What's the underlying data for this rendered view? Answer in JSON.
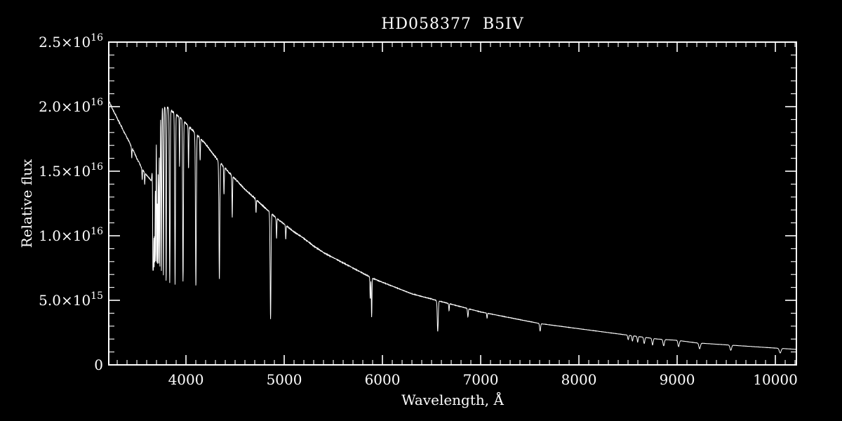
{
  "chart_data": {
    "type": "line",
    "title": "HD058377  B5IV",
    "xlabel": "Wavelength, Å",
    "ylabel": "Relative flux",
    "xlim": [
      3214,
      10214
    ],
    "ylim": [
      0,
      2.5e+16
    ],
    "background": "#000000",
    "foreground": "#ffffff",
    "grid": false,
    "legend": "none",
    "x_minor_step": 100,
    "y_minor_step": 1000000000000000.0,
    "x_ticks": [
      {
        "value": 4000,
        "label": "4000"
      },
      {
        "value": 5000,
        "label": "5000"
      },
      {
        "value": 6000,
        "label": "6000"
      },
      {
        "value": 7000,
        "label": "7000"
      },
      {
        "value": 8000,
        "label": "8000"
      },
      {
        "value": 9000,
        "label": "9000"
      },
      {
        "value": 10000,
        "label": "10000"
      }
    ],
    "y_ticks": [
      {
        "value": 0,
        "label": "0",
        "exp": ""
      },
      {
        "value": 5000000000000000.0,
        "label": "5.0×10",
        "exp": "15"
      },
      {
        "value": 1e+16,
        "label": "1.0×10",
        "exp": "16"
      },
      {
        "value": 1.5e+16,
        "label": "1.5×10",
        "exp": "16"
      },
      {
        "value": 2e+16,
        "label": "2.0×10",
        "exp": "16"
      },
      {
        "value": 2.5e+16,
        "label": "2.5×10",
        "exp": "16"
      }
    ],
    "series": [
      {
        "name": "spectrum",
        "continuum": [
          [
            3214,
            2.05e+16
          ],
          [
            3260,
            1.97e+16
          ],
          [
            3320,
            1.88e+16
          ],
          [
            3380,
            1.79e+16
          ],
          [
            3440,
            1.7e+16
          ],
          [
            3500,
            1.6e+16
          ],
          [
            3560,
            1.51e+16
          ],
          [
            3620,
            1.45e+16
          ],
          [
            3647,
            1.43e+16
          ],
          [
            3660,
            1.52e+16
          ],
          [
            3680,
            1.68e+16
          ],
          [
            3700,
            1.85e+16
          ],
          [
            3730,
            1.95e+16
          ],
          [
            3760,
            1.99e+16
          ],
          [
            3800,
            2e+16
          ],
          [
            3850,
            1.97e+16
          ],
          [
            3900,
            1.94e+16
          ],
          [
            3950,
            1.91e+16
          ],
          [
            4000,
            1.87e+16
          ],
          [
            4100,
            1.79e+16
          ],
          [
            4200,
            1.71e+16
          ],
          [
            4300,
            1.61e+16
          ],
          [
            4400,
            1.52e+16
          ],
          [
            4500,
            1.44e+16
          ],
          [
            4600,
            1.36e+16
          ],
          [
            4700,
            1.29e+16
          ],
          [
            4800,
            1.22e+16
          ],
          [
            4900,
            1.15e+16
          ],
          [
            5000,
            1.09e+16
          ],
          [
            5100,
            1.03e+16
          ],
          [
            5200,
            9800000000000000.0
          ],
          [
            5300,
            9200000000000000.0
          ],
          [
            5400,
            8700000000000000.0
          ],
          [
            5500,
            8300000000000000.0
          ],
          [
            5600,
            7900000000000000.0
          ],
          [
            5700,
            7500000000000000.0
          ],
          [
            5800,
            7100000000000000.0
          ],
          [
            5900,
            6700000000000000.0
          ],
          [
            6000,
            6400000000000000.0
          ],
          [
            6100,
            6100000000000000.0
          ],
          [
            6200,
            5800000000000000.0
          ],
          [
            6300,
            5500000000000000.0
          ],
          [
            6400,
            5300000000000000.0
          ],
          [
            6500,
            5100000000000000.0
          ],
          [
            6600,
            4900000000000000.0
          ],
          [
            6800,
            4500000000000000.0
          ],
          [
            7000,
            4100000000000000.0
          ],
          [
            7200,
            3800000000000000.0
          ],
          [
            7400,
            3500000000000000.0
          ],
          [
            7600,
            3200000000000000.0
          ],
          [
            7800,
            3000000000000000.0
          ],
          [
            8000,
            2800000000000000.0
          ],
          [
            8200,
            2600000000000000.0
          ],
          [
            8400,
            2400000000000000.0
          ],
          [
            8600,
            2200000000000000.0
          ],
          [
            8800,
            2000000000000000.0
          ],
          [
            9000,
            1900000000000000.0
          ],
          [
            9200,
            1700000000000000.0
          ],
          [
            9400,
            1600000000000000.0
          ],
          [
            9600,
            1500000000000000.0
          ],
          [
            9800,
            1400000000000000.0
          ],
          [
            10000,
            1300000000000000.0
          ],
          [
            10214,
            1200000000000000.0
          ]
        ],
        "absorption_lines": [
          {
            "center": 3448,
            "depth": 0.05,
            "width": 2.5
          },
          {
            "center": 3554,
            "depth": 0.06,
            "width": 2.5
          },
          {
            "center": 3580,
            "depth": 0.06,
            "width": 2.5
          },
          {
            "center": 3663,
            "depth": 0.5,
            "width": 2.5
          },
          {
            "center": 3669,
            "depth": 0.5,
            "width": 2.5
          },
          {
            "center": 3676,
            "depth": 0.52,
            "width": 2.5
          },
          {
            "center": 3683,
            "depth": 0.54,
            "width": 2.5
          },
          {
            "center": 3692,
            "depth": 0.56,
            "width": 2.5
          },
          {
            "center": 3704,
            "depth": 0.58,
            "width": 2.5
          },
          {
            "center": 3712,
            "depth": 0.58,
            "width": 2.5
          },
          {
            "center": 3722,
            "depth": 0.6,
            "width": 3
          },
          {
            "center": 3734,
            "depth": 0.62,
            "width": 3
          },
          {
            "center": 3750,
            "depth": 0.64,
            "width": 3
          },
          {
            "center": 3771,
            "depth": 0.66,
            "width": 3
          },
          {
            "center": 3798,
            "depth": 0.68,
            "width": 3.5
          },
          {
            "center": 3835,
            "depth": 0.68,
            "width": 4
          },
          {
            "center": 3889,
            "depth": 0.68,
            "width": 4
          },
          {
            "center": 3934,
            "depth": 0.2,
            "width": 2.5
          },
          {
            "center": 3970,
            "depth": 0.66,
            "width": 4
          },
          {
            "center": 4026,
            "depth": 0.18,
            "width": 3
          },
          {
            "center": 4101,
            "depth": 0.66,
            "width": 4.5
          },
          {
            "center": 4144,
            "depth": 0.1,
            "width": 3
          },
          {
            "center": 4340,
            "depth": 0.58,
            "width": 4.5
          },
          {
            "center": 4387,
            "depth": 0.14,
            "width": 3
          },
          {
            "center": 4471,
            "depth": 0.22,
            "width": 3
          },
          {
            "center": 4713,
            "depth": 0.08,
            "width": 3
          },
          {
            "center": 4861,
            "depth": 0.7,
            "width": 4.5
          },
          {
            "center": 4922,
            "depth": 0.14,
            "width": 3
          },
          {
            "center": 5016,
            "depth": 0.1,
            "width": 3
          },
          {
            "center": 5876,
            "depth": 0.25,
            "width": 3
          },
          {
            "center": 5890,
            "depth": 0.45,
            "width": 3
          },
          {
            "center": 6563,
            "depth": 0.48,
            "width": 5
          },
          {
            "center": 6678,
            "depth": 0.12,
            "width": 3
          },
          {
            "center": 6870,
            "depth": 0.15,
            "width": 4
          },
          {
            "center": 7065,
            "depth": 0.1,
            "width": 3
          },
          {
            "center": 7605,
            "depth": 0.18,
            "width": 5
          },
          {
            "center": 8502,
            "depth": 0.15,
            "width": 5
          },
          {
            "center": 8545,
            "depth": 0.18,
            "width": 5
          },
          {
            "center": 8598,
            "depth": 0.2,
            "width": 5
          },
          {
            "center": 8665,
            "depth": 0.22,
            "width": 6
          },
          {
            "center": 8750,
            "depth": 0.25,
            "width": 6
          },
          {
            "center": 8863,
            "depth": 0.25,
            "width": 7
          },
          {
            "center": 9015,
            "depth": 0.25,
            "width": 7
          },
          {
            "center": 9229,
            "depth": 0.26,
            "width": 8
          },
          {
            "center": 9546,
            "depth": 0.26,
            "width": 8
          },
          {
            "center": 10049,
            "depth": 0.28,
            "width": 9
          }
        ]
      }
    ]
  }
}
